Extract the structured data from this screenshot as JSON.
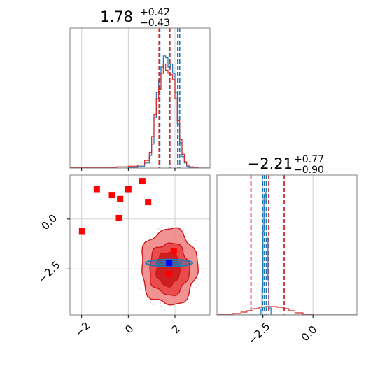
{
  "chart_data": [
    {
      "type": "histogram",
      "panel": "marginal-param-1",
      "title": {
        "median": "1.78",
        "plus": "+0.42",
        "minus": "−0.43"
      },
      "xlim": [
        -2.5,
        3.5
      ],
      "series": [
        {
          "color": "#1f77b4",
          "x": [
            -2.5,
            -0.5,
            0.0,
            0.4,
            0.7,
            0.9,
            1.0,
            1.1,
            1.2,
            1.3,
            1.4,
            1.5,
            1.6,
            1.7,
            1.8,
            1.9,
            2.0,
            2.1,
            2.2,
            2.3,
            2.4,
            2.5,
            2.6,
            2.8,
            3.0,
            3.5
          ],
          "y": [
            0,
            0,
            1,
            3,
            8,
            20,
            38,
            80,
            120,
            140,
            160,
            178,
            175,
            160,
            165,
            150,
            120,
            70,
            40,
            18,
            8,
            3,
            1,
            0,
            0,
            0
          ],
          "quantiles": [
            1.35,
            1.78,
            2.2
          ]
        },
        {
          "color": "#d62728",
          "x": [
            -2.5,
            -0.5,
            0.0,
            0.4,
            0.7,
            0.9,
            1.0,
            1.1,
            1.2,
            1.3,
            1.4,
            1.5,
            1.6,
            1.7,
            1.8,
            1.9,
            2.0,
            2.1,
            2.2,
            2.3,
            2.4,
            2.5,
            2.6,
            2.8,
            3.0,
            3.5
          ],
          "y": [
            1,
            2,
            3,
            5,
            12,
            25,
            50,
            85,
            110,
            125,
            150,
            165,
            155,
            150,
            148,
            140,
            110,
            75,
            45,
            22,
            10,
            5,
            2,
            1,
            0,
            0
          ],
          "quantiles": [
            1.32,
            1.78,
            2.12
          ]
        }
      ]
    },
    {
      "type": "scatter",
      "panel": "joint-param-1-param-2",
      "xlim": [
        -2.5,
        3.5
      ],
      "ylim": [
        -4.8,
        2.2
      ],
      "contours": [
        {
          "level": "outer",
          "color": "#f08080",
          "cx": 1.75,
          "cy": -2.4,
          "rx": 1.2,
          "ry": 1.9
        },
        {
          "level": "middle",
          "color": "#e84040",
          "cx": 1.75,
          "cy": -2.5,
          "rx": 0.85,
          "ry": 1.3
        },
        {
          "level": "inner",
          "color": "#c81818",
          "cx": 1.7,
          "cy": -2.5,
          "rx": 0.5,
          "ry": 0.85
        }
      ],
      "blue_contour": {
        "color": "#1f77b4",
        "cx": 1.75,
        "cy": -2.2,
        "rx": 1.0,
        "ry": 0.18
      },
      "red_points": [
        {
          "x": -1.98,
          "y": -0.6
        },
        {
          "x": -1.35,
          "y": 1.5
        },
        {
          "x": -0.7,
          "y": 1.2
        },
        {
          "x": -0.35,
          "y": 1.0
        },
        {
          "x": 0.0,
          "y": 1.5
        },
        {
          "x": -0.4,
          "y": 0.05
        },
        {
          "x": 0.6,
          "y": 1.9
        },
        {
          "x": 0.85,
          "y": 0.85
        },
        {
          "x": 1.95,
          "y": -1.6
        },
        {
          "x": 1.75,
          "y": -2.75
        }
      ],
      "blue_point": {
        "x": 1.75,
        "y": -2.2
      }
    },
    {
      "type": "histogram",
      "panel": "marginal-param-2",
      "title": {
        "median": "−2.21",
        "plus": "+0.77",
        "minus": "−0.90"
      },
      "xlim": [
        -4.8,
        2.2
      ],
      "series": [
        {
          "color": "#d62728",
          "x": [
            -4.8,
            -4.0,
            -3.6,
            -3.3,
            -3.0,
            -2.7,
            -2.4,
            -2.1,
            -1.8,
            -1.5,
            -1.2,
            -0.9,
            -0.5,
            0.0,
            2.2
          ],
          "y": [
            1,
            2,
            4,
            6,
            9,
            11,
            12,
            12,
            11,
            9,
            6,
            3,
            1,
            0,
            0
          ],
          "quantiles": [
            -3.1,
            -2.21,
            -1.44
          ]
        },
        {
          "color": "#1f77b4",
          "x": [
            -4.8,
            -2.7,
            -2.6,
            -2.55,
            -2.5,
            -2.45,
            -2.4,
            -2.35,
            -2.3,
            -2.25,
            -2.2,
            -2.1,
            2.2
          ],
          "y": [
            0,
            0,
            8,
            40,
            120,
            170,
            175,
            160,
            110,
            50,
            10,
            0,
            0
          ],
          "quantiles": [
            -2.52,
            -2.43,
            -2.33
          ]
        }
      ]
    }
  ],
  "axes": {
    "x1_ticks": [
      {
        "v": -2,
        "label": "−2"
      },
      {
        "v": 0,
        "label": "0"
      },
      {
        "v": 2,
        "label": "2"
      }
    ],
    "y2_ticks": [
      {
        "v": 0.0,
        "label": "0.0"
      },
      {
        "v": -2.5,
        "label": "−2.5"
      }
    ],
    "x2_ticks": [
      {
        "v": -2.5,
        "label": "−2.5"
      },
      {
        "v": 0.0,
        "label": "0.0"
      }
    ]
  }
}
